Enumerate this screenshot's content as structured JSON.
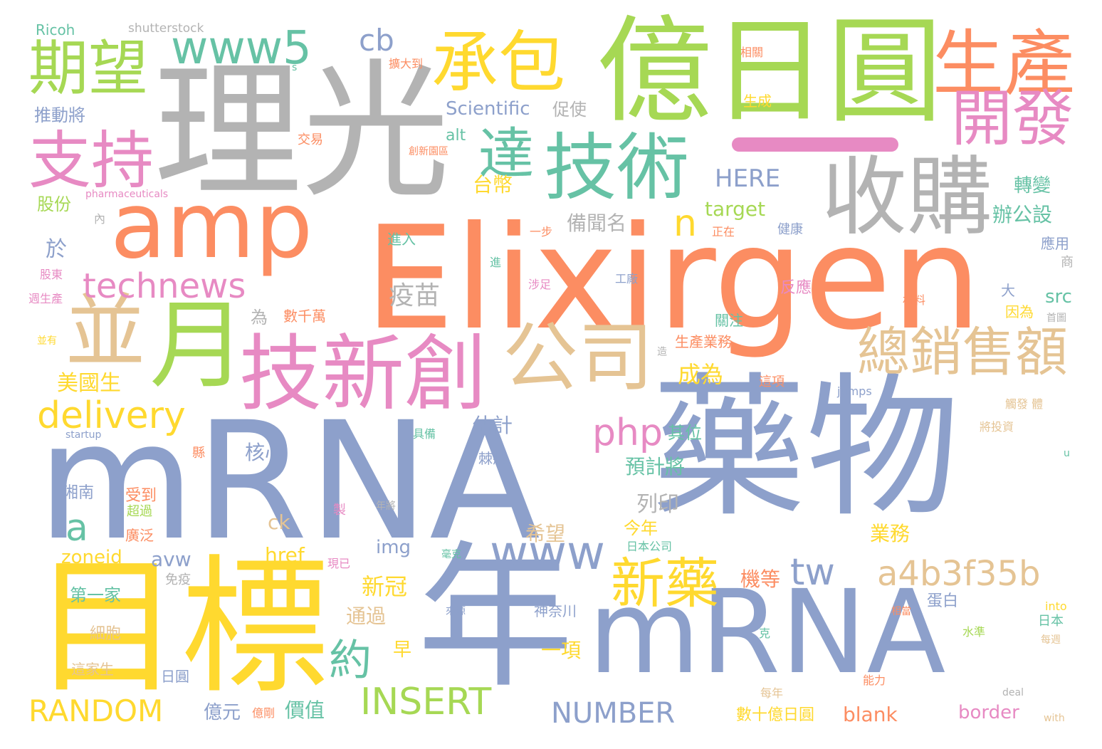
{
  "palette": {
    "gray": "#b3b3b3",
    "orange": "#fc8d62",
    "blue": "#8da0cb",
    "pink": "#e78ac3",
    "green": "#a6d854",
    "yellow": "#ffd92f",
    "tan": "#e5c494",
    "teal": "#66c2a5"
  },
  "words": [
    {
      "text": "Elixirgen",
      "color": "#fc8d62"
    },
    {
      "text": "mRNA",
      "color": "#8da0cb"
    },
    {
      "text": "藥物",
      "color": "#8da0cb"
    },
    {
      "text": "理光",
      "color": "#b3b3b3"
    },
    {
      "text": "億日圓",
      "color": "#a6d854"
    },
    {
      "text": "目標",
      "color": "#ffd92f"
    },
    {
      "text": "年",
      "color": "#8da0cb"
    },
    {
      "text": "mRNA",
      "color": "#8da0cb"
    },
    {
      "text": "amp",
      "color": "#fc8d62"
    },
    {
      "text": "收購",
      "color": "#b3b3b3"
    },
    {
      "text": "技術",
      "color": "#66c2a5"
    },
    {
      "text": "承包",
      "color": "#ffd92f"
    },
    {
      "text": "生產",
      "color": "#fc8d62"
    },
    {
      "text": "開發",
      "color": "#e78ac3"
    },
    {
      "text": "期望",
      "color": "#a6d854"
    },
    {
      "text": "支持",
      "color": "#e78ac3"
    },
    {
      "text": "www5",
      "color": "#66c2a5"
    },
    {
      "text": "達",
      "color": "#66c2a5"
    },
    {
      "text": "並",
      "color": "#e5c494"
    },
    {
      "text": "月",
      "color": "#a6d854"
    },
    {
      "text": "技新創",
      "color": "#e78ac3"
    },
    {
      "text": "公司",
      "color": "#e5c494"
    },
    {
      "text": "總銷售額",
      "color": "#e5c494"
    },
    {
      "text": "technews",
      "color": "#e78ac3"
    },
    {
      "text": "delivery",
      "color": "#ffd92f"
    },
    {
      "text": "php",
      "color": "#e78ac3"
    },
    {
      "text": "新藥",
      "color": "#ffd92f"
    },
    {
      "text": "a4b3f35b",
      "color": "#e5c494"
    },
    {
      "text": "www",
      "color": "#8da0cb"
    },
    {
      "text": "tw",
      "color": "#8da0cb"
    },
    {
      "text": "約",
      "color": "#66c2a5"
    },
    {
      "text": "a",
      "color": "#66c2a5"
    },
    {
      "text": "n",
      "color": "#ffd92f"
    },
    {
      "text": "cb",
      "color": "#8da0cb"
    },
    {
      "text": "RANDOM",
      "color": "#ffd92f"
    },
    {
      "text": "INSERT",
      "color": "#a6d854"
    },
    {
      "text": "NUMBER",
      "color": "#8da0cb"
    },
    {
      "text": "HERE",
      "color": "#8da0cb"
    },
    {
      "text": "Scientific",
      "color": "#8da0cb"
    },
    {
      "text": "疫苗",
      "color": "#b3b3b3"
    },
    {
      "text": "成為",
      "color": "#ffd92f"
    },
    {
      "text": "新冠",
      "color": "#ffd92f"
    },
    {
      "text": "Ricoh",
      "color": "#66c2a5"
    },
    {
      "text": "shutterstock",
      "color": "#b3b3b3"
    },
    {
      "text": "推動將",
      "color": "#8da0cb"
    },
    {
      "text": "股份",
      "color": "#a6d854"
    },
    {
      "text": "於",
      "color": "#8da0cb"
    },
    {
      "text": "美國生",
      "color": "#ffd92f"
    },
    {
      "text": "zoneid",
      "color": "#ffd92f"
    },
    {
      "text": "avw",
      "color": "#8da0cb"
    },
    {
      "text": "href",
      "color": "#ffd92f"
    },
    {
      "text": "img",
      "color": "#8da0cb"
    },
    {
      "text": "target",
      "color": "#a6d854"
    },
    {
      "text": "備聞名",
      "color": "#b3b3b3"
    },
    {
      "text": "促使",
      "color": "#b3b3b3"
    },
    {
      "text": "alt",
      "color": "#66c2a5"
    },
    {
      "text": "台幣",
      "color": "#ffd92f"
    },
    {
      "text": "轉變",
      "color": "#66c2a5"
    },
    {
      "text": "辦公設",
      "color": "#66c2a5"
    },
    {
      "text": "src",
      "color": "#66c2a5"
    },
    {
      "text": "業務",
      "color": "#ffd92f"
    },
    {
      "text": "預計將",
      "color": "#66c2a5"
    },
    {
      "text": "其位",
      "color": "#66c2a5"
    },
    {
      "text": "核心",
      "color": "#8da0cb"
    },
    {
      "text": "估計",
      "color": "#8da0cb"
    },
    {
      "text": "列印",
      "color": "#b3b3b3"
    },
    {
      "text": "希望",
      "color": "#e5c494"
    },
    {
      "text": "今年",
      "color": "#ffd92f"
    },
    {
      "text": "ck",
      "color": "#e5c494"
    },
    {
      "text": "機等",
      "color": "#fc8d62"
    },
    {
      "text": "通過",
      "color": "#e5c494"
    },
    {
      "text": "早",
      "color": "#ffd92f"
    },
    {
      "text": "一項",
      "color": "#ffd92f"
    },
    {
      "text": "價值",
      "color": "#66c2a5"
    },
    {
      "text": "億元",
      "color": "#8da0cb"
    },
    {
      "text": "blank",
      "color": "#fc8d62"
    },
    {
      "text": "border",
      "color": "#e78ac3"
    },
    {
      "text": "數十億日圓",
      "color": "#ffd92f"
    },
    {
      "text": "第一家",
      "color": "#66c2a5"
    },
    {
      "text": "細胞",
      "color": "#e5c494"
    },
    {
      "text": "這家生",
      "color": "#e5c494"
    },
    {
      "text": "日圓",
      "color": "#8da0cb"
    },
    {
      "text": "湘南",
      "color": "#8da0cb"
    },
    {
      "text": "受到",
      "color": "#fc8d62"
    },
    {
      "text": "超過",
      "color": "#a6d854"
    },
    {
      "text": "廣泛",
      "color": "#fc8d62"
    },
    {
      "text": "免疫",
      "color": "#b3b3b3"
    },
    {
      "text": "為",
      "color": "#b3b3b3"
    },
    {
      "text": "數千萬",
      "color": "#fc8d62"
    },
    {
      "text": "生產業務",
      "color": "#fc8d62"
    },
    {
      "text": "這項",
      "color": "#fc8d62"
    },
    {
      "text": "神奈川",
      "color": "#8da0cb"
    },
    {
      "text": "蛋白",
      "color": "#8da0cb"
    },
    {
      "text": "反應",
      "color": "#e78ac3"
    },
    {
      "text": "健康",
      "color": "#8da0cb"
    },
    {
      "text": "應用",
      "color": "#8da0cb"
    },
    {
      "text": "因為",
      "color": "#ffd92f"
    },
    {
      "text": "大",
      "color": "#8da0cb"
    },
    {
      "text": "日本",
      "color": "#66c2a5"
    },
    {
      "text": "水準",
      "color": "#a6d854"
    },
    {
      "text": "into",
      "color": "#ffd92f"
    },
    {
      "text": "能力",
      "color": "#fc8d62"
    },
    {
      "text": "每年",
      "color": "#e5c494"
    },
    {
      "text": "相關",
      "color": "#fc8d62"
    },
    {
      "text": "生成",
      "color": "#ffd92f"
    },
    {
      "text": "交易",
      "color": "#fc8d62"
    },
    {
      "text": "擴大到",
      "color": "#fc8d62"
    },
    {
      "text": "創新園區",
      "color": "#fc8d62"
    },
    {
      "text": "pharmaceuticals",
      "color": "#e78ac3"
    },
    {
      "text": "內",
      "color": "#b3b3b3"
    },
    {
      "text": "進入",
      "color": "#66c2a5"
    },
    {
      "text": "一步",
      "color": "#fc8d62"
    },
    {
      "text": "正在",
      "color": "#fc8d62"
    },
    {
      "text": "工廠",
      "color": "#8da0cb"
    },
    {
      "text": "涉足",
      "color": "#e78ac3"
    },
    {
      "text": "進",
      "color": "#66c2a5"
    },
    {
      "text": "關注",
      "color": "#66c2a5"
    },
    {
      "text": "股東",
      "color": "#e78ac3"
    },
    {
      "text": "週生產",
      "color": "#e78ac3"
    },
    {
      "text": "並有",
      "color": "#ffd92f"
    },
    {
      "text": "材料",
      "color": "#fc8d62"
    },
    {
      "text": "首圖",
      "color": "#b3b3b3"
    },
    {
      "text": "商",
      "color": "#b3b3b3"
    },
    {
      "text": "jumps",
      "color": "#8da0cb"
    },
    {
      "text": "將投資",
      "color": "#e5c494"
    },
    {
      "text": "觸發 體",
      "color": "#e5c494"
    },
    {
      "text": "startup",
      "color": "#8da0cb"
    },
    {
      "text": "具備",
      "color": "#66c2a5"
    },
    {
      "text": "棘狀",
      "color": "#8da0cb"
    },
    {
      "text": "縣",
      "color": "#fc8d62"
    },
    {
      "text": "製",
      "color": "#e78ac3"
    },
    {
      "text": "年將",
      "color": "#b3b3b3"
    },
    {
      "text": "毫克",
      "color": "#66c2a5"
    },
    {
      "text": "現已",
      "color": "#e78ac3"
    },
    {
      "text": "日本公司",
      "color": "#66c2a5"
    },
    {
      "text": "來源",
      "color": "#8da0cb"
    },
    {
      "text": "克",
      "color": "#66c2a5"
    },
    {
      "text": "相當",
      "color": "#fc8d62"
    },
    {
      "text": "每週",
      "color": "#e5c494"
    },
    {
      "text": "u",
      "color": "#66c2a5"
    },
    {
      "text": "造",
      "color": "#b3b3b3"
    },
    {
      "text": "deal",
      "color": "#b3b3b3"
    },
    {
      "text": "with",
      "color": "#e5c494"
    },
    {
      "text": "億剛",
      "color": "#fc8d62"
    },
    {
      "text": "s",
      "color": "#66c2a5"
    }
  ]
}
